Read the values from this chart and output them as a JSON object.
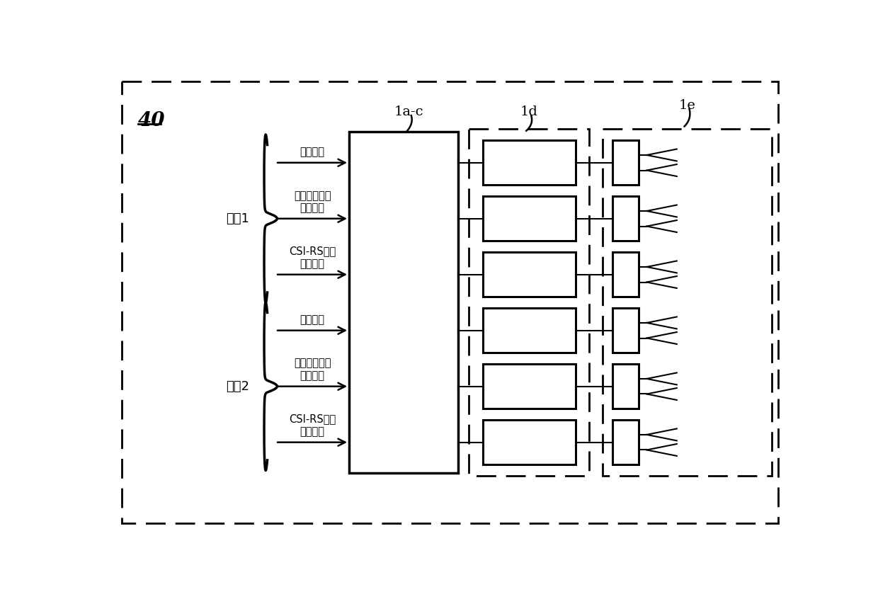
{
  "bg_color": "#ffffff",
  "fig_width": 12.4,
  "fig_height": 8.46,
  "label_40": "40",
  "label_1ac": "1a-c",
  "label_1d": "1d",
  "label_1e": "1e",
  "set1_label": "集合1",
  "set2_label": "集合2",
  "set1_inputs": [
    "用户数据",
    "用户数据波束\n形成权重",
    "CSI-RS波束\n形成权重"
  ],
  "set2_inputs": [
    "用户数据",
    "用户数据波束\n形成权重",
    "CSI-RS波束\n形成权重"
  ],
  "num_blocks": 6,
  "line_color": "#000000"
}
